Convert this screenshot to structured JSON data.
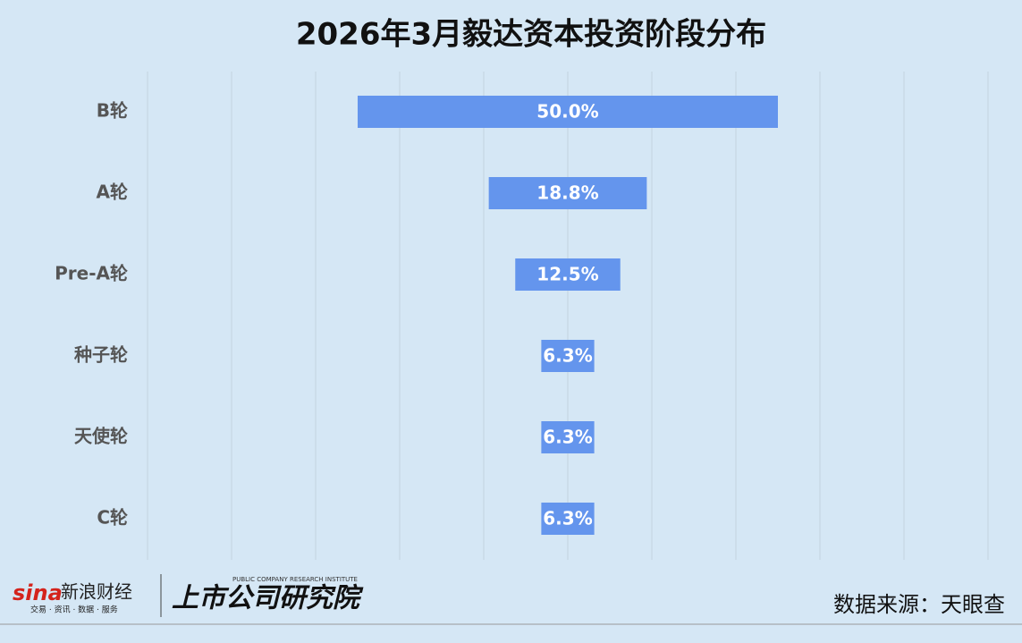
{
  "chart_data": {
    "type": "bar",
    "orientation": "horizontal",
    "align": "center",
    "title": "2026年3月毅达资本投资阶段分布",
    "categories": [
      "B轮",
      "A轮",
      "Pre-A轮",
      "种子轮",
      "天使轮",
      "C轮"
    ],
    "values": [
      50.0,
      18.8,
      12.5,
      6.3,
      6.3,
      6.3
    ],
    "value_labels": [
      "50.0%",
      "18.8%",
      "12.5%",
      "6.3%",
      "6.3%",
      "6.3%"
    ],
    "color": "#6495ed",
    "xlim": [
      0,
      100
    ],
    "xticks": [
      0,
      10,
      20,
      30,
      40,
      50,
      60,
      70,
      80,
      90,
      100
    ],
    "grid": true
  },
  "footer": {
    "brand": "新浪财经",
    "brand_tagline": "交易 · 资讯 · 数据 · 服务",
    "institute": "上市公司研究院",
    "institute_en": "PUBLIC COMPANY RESEARCH INSTITUTE",
    "source": "数据来源：天眼查"
  }
}
